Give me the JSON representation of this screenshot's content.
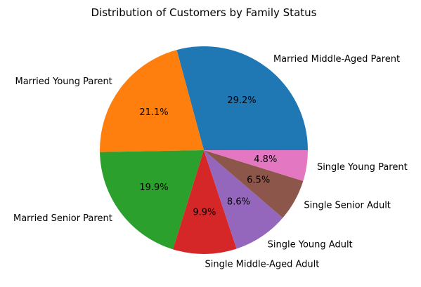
{
  "chart_data": {
    "type": "pie",
    "title": "Distribution of Customers by Family Status",
    "start_angle_deg": 0,
    "direction": "counterclockwise",
    "slices": [
      {
        "label": "Married Middle-Aged Parent",
        "value": 29.2,
        "pct_label": "29.2%",
        "color": "#1f77b4"
      },
      {
        "label": "Married Young Parent",
        "value": 21.1,
        "pct_label": "21.1%",
        "color": "#ff7f0e"
      },
      {
        "label": "Married Senior Parent",
        "value": 19.9,
        "pct_label": "19.9%",
        "color": "#2ca02c"
      },
      {
        "label": "Single Middle-Aged Adult",
        "value": 9.9,
        "pct_label": "9.9%",
        "color": "#d62728"
      },
      {
        "label": "Single Young Adult",
        "value": 8.6,
        "pct_label": "8.6%",
        "color": "#9467bd"
      },
      {
        "label": "Single Senior Adult",
        "value": 6.5,
        "pct_label": "6.5%",
        "color": "#8c564b"
      },
      {
        "label": "Single Young Parent",
        "value": 4.8,
        "pct_label": "4.8%",
        "color": "#e377c2"
      }
    ]
  }
}
